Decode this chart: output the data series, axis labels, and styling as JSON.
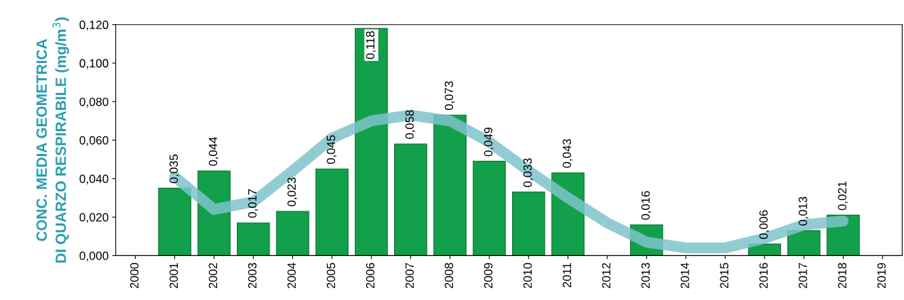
{
  "chart_data": {
    "type": "bar",
    "ylabel": "CONC. MEDIA GEOMETRICA\nDI QUARZO RESPIRABILE (mg/m$^{3}$)",
    "categories": [
      "2000",
      "2001",
      "2002",
      "2003",
      "2004",
      "2005",
      "2006",
      "2007",
      "2008",
      "2009",
      "2010",
      "2011",
      "2012",
      "2013",
      "2014",
      "2015",
      "2016",
      "2017",
      "2018",
      "2019"
    ],
    "series": [
      {
        "color": "#12a04a",
        "values": [
          null,
          0.035,
          0.044,
          0.017,
          0.023,
          0.045,
          0.118,
          0.058,
          0.073,
          0.049,
          0.033,
          0.043,
          null,
          0.016,
          null,
          null,
          0.006,
          0.013,
          0.021,
          null
        ],
        "value_labels": [
          null,
          "0,035",
          "0,044",
          "0,017",
          "0,023",
          "0,045",
          "0,118",
          "0,058",
          "0,073",
          "0,049",
          "0,033",
          "0,043",
          null,
          "0,016",
          null,
          null,
          "0,006",
          "0,013",
          "0,021",
          null
        ]
      },
      {
        "type": "line",
        "color": "#7fc3cb",
        "values": [
          null,
          0.041,
          0.024,
          0.028,
          0.044,
          0.061,
          0.07,
          0.073,
          0.07,
          0.059,
          0.044,
          0.03,
          0.017,
          0.007,
          0.004,
          0.004,
          0.009,
          0.016,
          0.018,
          null
        ]
      }
    ],
    "ylim": [
      0,
      0.12
    ],
    "yticks": [
      {
        "value": 0,
        "label": "0,000"
      },
      {
        "value": 0.02,
        "label": "0,020"
      },
      {
        "value": 0.04,
        "label": "0,040"
      },
      {
        "value": 0.06,
        "label": "0,060"
      },
      {
        "value": 0.08,
        "label": "0,080"
      },
      {
        "value": 0.1,
        "label": "0,100"
      },
      {
        "value": 0.12,
        "label": "0,120"
      }
    ],
    "grid": false
  }
}
